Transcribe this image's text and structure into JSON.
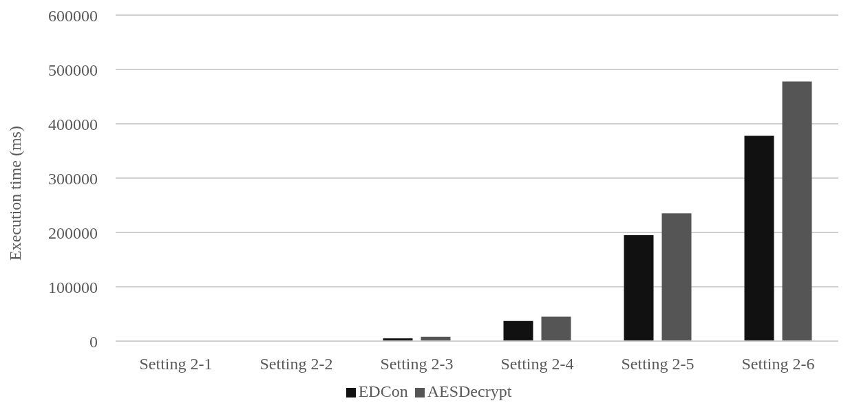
{
  "chart_data": {
    "type": "bar",
    "ylabel": "Execution time (ms)",
    "categories": [
      "Setting 2-1",
      "Setting 2-2",
      "Setting 2-3",
      "Setting 2-4",
      "Setting 2-5",
      "Setting 2-6"
    ],
    "series": [
      {
        "name": "EDCon",
        "color": "#111111",
        "values": [
          null,
          null,
          5000,
          37000,
          195000,
          378000
        ]
      },
      {
        "name": "AESDecrypt",
        "color": "#555555",
        "values": [
          null,
          null,
          8000,
          45000,
          235000,
          478000
        ]
      }
    ],
    "ylim": [
      0,
      600000
    ],
    "yticks": [
      0,
      100000,
      200000,
      300000,
      400000,
      500000,
      600000
    ],
    "grid": "y",
    "legend": "bottom"
  }
}
